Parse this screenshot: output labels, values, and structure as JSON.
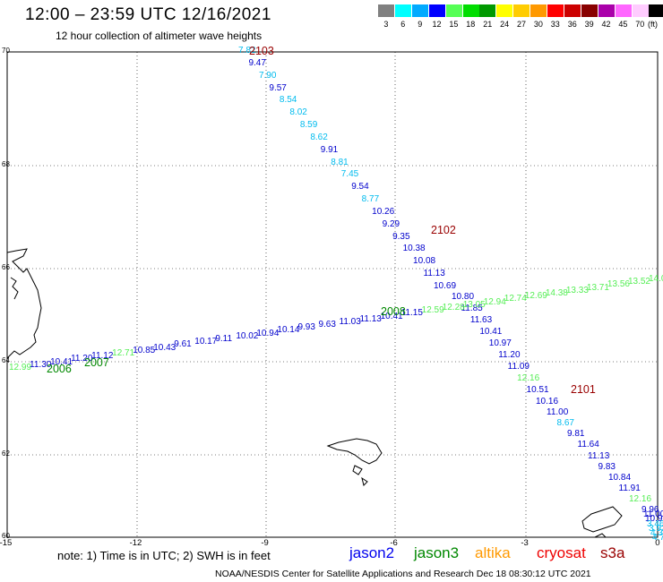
{
  "header": {
    "title": "12:00 – 23:59 UTC 12/16/2021",
    "subtitle": "12 hour collection of altimeter wave heights"
  },
  "colorbar": {
    "colors": [
      "#808080",
      "#00ffff",
      "#00aaff",
      "#0000ff",
      "#55ff55",
      "#00dd00",
      "#009900",
      "#ffff00",
      "#ffcc00",
      "#ff9900",
      "#ff0000",
      "#cc0000",
      "#880000",
      "#aa00aa",
      "#ff66ff",
      "#ffccff",
      "#000000"
    ],
    "labels": [
      "3",
      "6",
      "9",
      "12",
      "15",
      "18",
      "21",
      "24",
      "27",
      "30",
      "33",
      "36",
      "39",
      "42",
      "45",
      "70",
      "(ft)"
    ]
  },
  "axes": {
    "x_ticks": [
      "-15",
      "-12",
      "-9",
      "-6",
      "-3",
      "0"
    ],
    "y_ticks": [
      "70",
      "68",
      "66",
      "64",
      "62",
      "60"
    ]
  },
  "tracks": {
    "descending": [
      {
        "v": "7.82",
        "c": "#00bbee"
      },
      {
        "v": "9.47",
        "c": "#0000cc"
      },
      {
        "v": "7.90",
        "c": "#00bbee"
      },
      {
        "v": "9.57",
        "c": "#0000cc"
      },
      {
        "v": "8.54",
        "c": "#00bbee"
      },
      {
        "v": "8.02",
        "c": "#00bbee"
      },
      {
        "v": "8.59",
        "c": "#00bbee"
      },
      {
        "v": "8.62",
        "c": "#00bbee"
      },
      {
        "v": "9.91",
        "c": "#0000cc"
      },
      {
        "v": "8.81",
        "c": "#00bbee"
      },
      {
        "v": "7.45",
        "c": "#00bbee"
      },
      {
        "v": "9.54",
        "c": "#0000cc"
      },
      {
        "v": "8.77",
        "c": "#00bbee"
      },
      {
        "v": "10.26",
        "c": "#0000cc"
      },
      {
        "v": "9.29",
        "c": "#0000cc"
      },
      {
        "v": "9.35",
        "c": "#0000cc"
      },
      {
        "v": "10.38",
        "c": "#0000cc"
      },
      {
        "v": "10.08",
        "c": "#0000cc"
      },
      {
        "v": "11.13",
        "c": "#0000cc"
      },
      {
        "v": "10.69",
        "c": "#0000cc"
      },
      {
        "v": "10.80",
        "c": "#0000cc"
      },
      {
        "v": "11.85",
        "c": "#0000cc"
      },
      {
        "v": "11.63",
        "c": "#0000cc"
      },
      {
        "v": "10.41",
        "c": "#0000cc"
      },
      {
        "v": "10.97",
        "c": "#0000cc"
      },
      {
        "v": "11.20",
        "c": "#0000cc"
      },
      {
        "v": "11.09",
        "c": "#0000cc"
      },
      {
        "v": "12.16",
        "c": "#55ee55"
      },
      {
        "v": "10.51",
        "c": "#0000cc"
      },
      {
        "v": "10.16",
        "c": "#0000cc"
      },
      {
        "v": "11.00",
        "c": "#0000cc"
      },
      {
        "v": "8.67",
        "c": "#00bbee"
      },
      {
        "v": "9.81",
        "c": "#0000cc"
      },
      {
        "v": "11.64",
        "c": "#0000cc"
      },
      {
        "v": "11.13",
        "c": "#0000cc"
      },
      {
        "v": "9.83",
        "c": "#0000cc"
      },
      {
        "v": "10.84",
        "c": "#0000cc"
      },
      {
        "v": "11.91",
        "c": "#0000cc"
      },
      {
        "v": "12.16",
        "c": "#55ee55"
      },
      {
        "v": "9.96",
        "c": "#0000cc"
      },
      {
        "v": "11.00",
        "c": "#0000cc"
      },
      {
        "v": "10.96",
        "c": "#0000cc"
      },
      {
        "v": "3.46",
        "c": "#00bbee"
      },
      {
        "v": "3.92",
        "c": "#00bbee"
      },
      {
        "v": "4.3",
        "c": "#00bbee"
      },
      {
        "v": "4.7",
        "c": "#00bbee"
      }
    ],
    "ascending": [
      {
        "v": "12.99",
        "c": "#55ee55"
      },
      {
        "v": "11.30",
        "c": "#0000cc"
      },
      {
        "v": "10.41",
        "c": "#0000cc"
      },
      {
        "v": "11.20",
        "c": "#0000cc"
      },
      {
        "v": "11.12",
        "c": "#0000cc"
      },
      {
        "v": "12.71",
        "c": "#55ee55"
      },
      {
        "v": "10.85",
        "c": "#0000cc"
      },
      {
        "v": "10.43",
        "c": "#0000cc"
      },
      {
        "v": "9.61",
        "c": "#0000cc"
      },
      {
        "v": "10.17",
        "c": "#0000cc"
      },
      {
        "v": "9.11",
        "c": "#0000cc"
      },
      {
        "v": "10.02",
        "c": "#0000cc"
      },
      {
        "v": "10.94",
        "c": "#0000cc"
      },
      {
        "v": "10.14",
        "c": "#0000cc"
      },
      {
        "v": "9.93",
        "c": "#0000cc"
      },
      {
        "v": "9.63",
        "c": "#0000cc"
      },
      {
        "v": "11.03",
        "c": "#0000cc"
      },
      {
        "v": "11.13",
        "c": "#0000cc"
      },
      {
        "v": "10.41",
        "c": "#0000cc"
      },
      {
        "v": "11.15",
        "c": "#0000cc"
      },
      {
        "v": "12.59",
        "c": "#55ee55"
      },
      {
        "v": "12.28",
        "c": "#55ee55"
      },
      {
        "v": "13.05",
        "c": "#55ee55"
      },
      {
        "v": "12.94",
        "c": "#55ee55"
      },
      {
        "v": "12.74",
        "c": "#55ee55"
      },
      {
        "v": "12.69",
        "c": "#55ee55"
      },
      {
        "v": "14.38",
        "c": "#55ee55"
      },
      {
        "v": "13.33",
        "c": "#55ee55"
      },
      {
        "v": "13.71",
        "c": "#55ee55"
      },
      {
        "v": "13.56",
        "c": "#55ee55"
      },
      {
        "v": "13.52",
        "c": "#55ee55"
      },
      {
        "v": "14.0",
        "c": "#55ee55"
      }
    ],
    "cycles": [
      {
        "label": "2103",
        "color": "#990000"
      },
      {
        "label": "2102",
        "color": "#990000"
      },
      {
        "label": "2101",
        "color": "#990000"
      },
      {
        "label": "2008",
        "color": "#008800"
      },
      {
        "label": "2007",
        "color": "#008800"
      },
      {
        "label": "2006",
        "color": "#008800"
      }
    ]
  },
  "note": "note: 1) Time is in UTC; 2) SWH is in feet",
  "legend": [
    {
      "label": "jason2",
      "color": "#0000ee"
    },
    {
      "label": "jason3",
      "color": "#008800"
    },
    {
      "label": "altika",
      "color": "#ff9900"
    },
    {
      "label": "cryosat",
      "color": "#ee0000"
    },
    {
      "label": "s3a",
      "color": "#990000"
    }
  ],
  "footer": "NOAA/NESDIS Center for Satellite Applications and Research    Dec 18 08:30:12 UTC 2021"
}
